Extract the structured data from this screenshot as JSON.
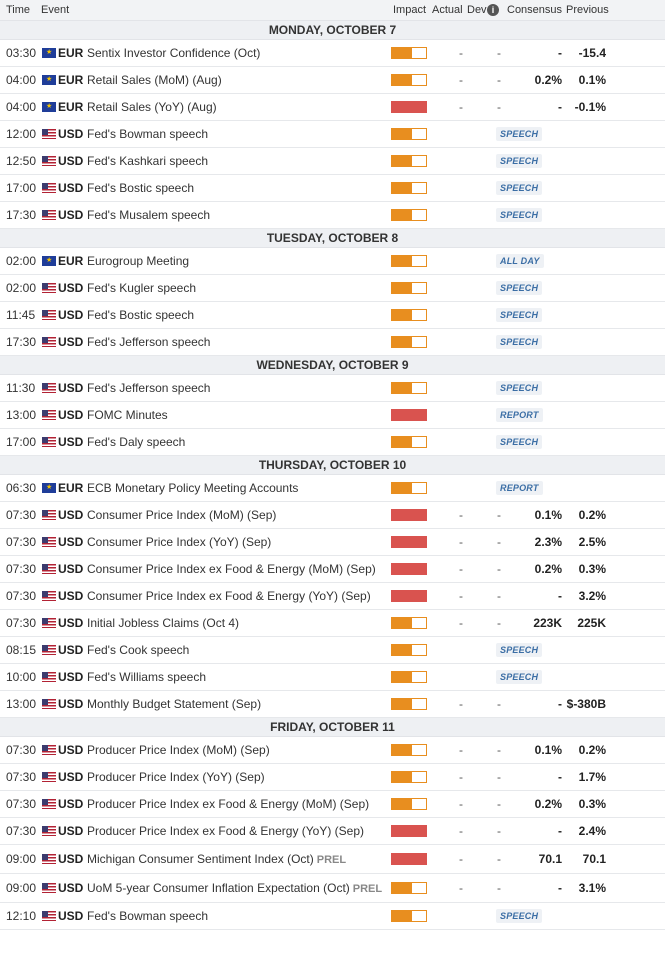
{
  "header": {
    "time": "Time",
    "event": "Event",
    "impact": "Impact",
    "actual": "Actual",
    "dev": "Dev",
    "consensus": "Consensus",
    "previous": "Previous"
  },
  "days": [
    {
      "label": "MONDAY, OCTOBER 7",
      "rows": [
        {
          "time": "03:30",
          "cur": "EUR",
          "flag": "eu",
          "event": "Sentix Investor Confidence (Oct)",
          "impact": "medium",
          "actual": "-",
          "dev": "-",
          "consensus": "-",
          "previous": "-15.4"
        },
        {
          "time": "04:00",
          "cur": "EUR",
          "flag": "eu",
          "event": "Retail Sales (MoM) (Aug)",
          "impact": "medium",
          "actual": "-",
          "dev": "-",
          "consensus": "0.2%",
          "previous": "0.1%"
        },
        {
          "time": "04:00",
          "cur": "EUR",
          "flag": "eu",
          "event": "Retail Sales (YoY) (Aug)",
          "impact": "high",
          "actual": "-",
          "dev": "-",
          "consensus": "-",
          "previous": "-0.1%"
        },
        {
          "time": "12:00",
          "cur": "USD",
          "flag": "us",
          "event": "Fed's Bowman speech",
          "impact": "medium",
          "tag": "SPEECH"
        },
        {
          "time": "12:50",
          "cur": "USD",
          "flag": "us",
          "event": "Fed's Kashkari speech",
          "impact": "medium",
          "tag": "SPEECH"
        },
        {
          "time": "17:00",
          "cur": "USD",
          "flag": "us",
          "event": "Fed's Bostic speech",
          "impact": "medium",
          "tag": "SPEECH"
        },
        {
          "time": "17:30",
          "cur": "USD",
          "flag": "us",
          "event": "Fed's Musalem speech",
          "impact": "medium",
          "tag": "SPEECH"
        }
      ]
    },
    {
      "label": "TUESDAY, OCTOBER 8",
      "rows": [
        {
          "time": "02:00",
          "cur": "EUR",
          "flag": "eu",
          "event": "Eurogroup Meeting",
          "impact": "medium",
          "tag": "ALL DAY"
        },
        {
          "time": "02:00",
          "cur": "USD",
          "flag": "us",
          "event": "Fed's Kugler speech",
          "impact": "medium",
          "tag": "SPEECH"
        },
        {
          "time": "11:45",
          "cur": "USD",
          "flag": "us",
          "event": "Fed's Bostic speech",
          "impact": "medium",
          "tag": "SPEECH"
        },
        {
          "time": "17:30",
          "cur": "USD",
          "flag": "us",
          "event": "Fed's Jefferson speech",
          "impact": "medium",
          "tag": "SPEECH"
        }
      ]
    },
    {
      "label": "WEDNESDAY, OCTOBER 9",
      "rows": [
        {
          "time": "11:30",
          "cur": "USD",
          "flag": "us",
          "event": "Fed's Jefferson speech",
          "impact": "medium",
          "tag": "SPEECH"
        },
        {
          "time": "13:00",
          "cur": "USD",
          "flag": "us",
          "event": "FOMC Minutes",
          "impact": "high",
          "tag": "REPORT"
        },
        {
          "time": "17:00",
          "cur": "USD",
          "flag": "us",
          "event": "Fed's Daly speech",
          "impact": "medium",
          "tag": "SPEECH"
        }
      ]
    },
    {
      "label": "THURSDAY, OCTOBER 10",
      "rows": [
        {
          "time": "06:30",
          "cur": "EUR",
          "flag": "eu",
          "event": "ECB Monetary Policy Meeting Accounts",
          "impact": "medium",
          "tag": "REPORT"
        },
        {
          "time": "07:30",
          "cur": "USD",
          "flag": "us",
          "event": "Consumer Price Index (MoM) (Sep)",
          "impact": "high",
          "actual": "-",
          "dev": "-",
          "consensus": "0.1%",
          "previous": "0.2%"
        },
        {
          "time": "07:30",
          "cur": "USD",
          "flag": "us",
          "event": "Consumer Price Index (YoY) (Sep)",
          "impact": "high",
          "actual": "-",
          "dev": "-",
          "consensus": "2.3%",
          "previous": "2.5%"
        },
        {
          "time": "07:30",
          "cur": "USD",
          "flag": "us",
          "event": "Consumer Price Index ex Food & Energy (MoM) (Sep)",
          "impact": "high",
          "actual": "-",
          "dev": "-",
          "consensus": "0.2%",
          "previous": "0.3%"
        },
        {
          "time": "07:30",
          "cur": "USD",
          "flag": "us",
          "event": "Consumer Price Index ex Food & Energy (YoY) (Sep)",
          "impact": "high",
          "actual": "-",
          "dev": "-",
          "consensus": "-",
          "previous": "3.2%"
        },
        {
          "time": "07:30",
          "cur": "USD",
          "flag": "us",
          "event": "Initial Jobless Claims (Oct 4)",
          "impact": "medium",
          "actual": "-",
          "dev": "-",
          "consensus": "223K",
          "previous": "225K"
        },
        {
          "time": "08:15",
          "cur": "USD",
          "flag": "us",
          "event": "Fed's Cook speech",
          "impact": "medium",
          "tag": "SPEECH"
        },
        {
          "time": "10:00",
          "cur": "USD",
          "flag": "us",
          "event": "Fed's Williams speech",
          "impact": "medium",
          "tag": "SPEECH"
        },
        {
          "time": "13:00",
          "cur": "USD",
          "flag": "us",
          "event": "Monthly Budget Statement (Sep)",
          "impact": "medium",
          "actual": "-",
          "dev": "-",
          "consensus": "-",
          "previous": "$-380B"
        }
      ]
    },
    {
      "label": "FRIDAY, OCTOBER 11",
      "rows": [
        {
          "time": "07:30",
          "cur": "USD",
          "flag": "us",
          "event": "Producer Price Index (MoM) (Sep)",
          "impact": "medium",
          "actual": "-",
          "dev": "-",
          "consensus": "0.1%",
          "previous": "0.2%"
        },
        {
          "time": "07:30",
          "cur": "USD",
          "flag": "us",
          "event": "Producer Price Index (YoY) (Sep)",
          "impact": "medium",
          "actual": "-",
          "dev": "-",
          "consensus": "-",
          "previous": "1.7%"
        },
        {
          "time": "07:30",
          "cur": "USD",
          "flag": "us",
          "event": "Producer Price Index ex Food & Energy (MoM) (Sep)",
          "impact": "medium",
          "actual": "-",
          "dev": "-",
          "consensus": "0.2%",
          "previous": "0.3%"
        },
        {
          "time": "07:30",
          "cur": "USD",
          "flag": "us",
          "event": "Producer Price Index ex Food & Energy (YoY) (Sep)",
          "impact": "high",
          "actual": "-",
          "dev": "-",
          "consensus": "-",
          "previous": "2.4%"
        },
        {
          "time": "09:00",
          "cur": "USD",
          "flag": "us",
          "event": "Michigan Consumer Sentiment Index (Oct)",
          "prel": "PREL",
          "impact": "high",
          "actual": "-",
          "dev": "-",
          "consensus": "70.1",
          "previous": "70.1"
        },
        {
          "time": "09:00",
          "cur": "USD",
          "flag": "us",
          "event": "UoM 5-year Consumer Inflation Expectation (Oct)",
          "prel": "PREL",
          "impact": "medium",
          "actual": "-",
          "dev": "-",
          "consensus": "-",
          "previous": "3.1%"
        },
        {
          "time": "12:10",
          "cur": "USD",
          "flag": "us",
          "event": "Fed's Bowman speech",
          "impact": "medium",
          "tag": "SPEECH"
        }
      ]
    }
  ],
  "colors": {
    "impact_medium": "#e88e1f",
    "impact_high": "#d9534f",
    "tag_text": "#3b6ea5"
  }
}
